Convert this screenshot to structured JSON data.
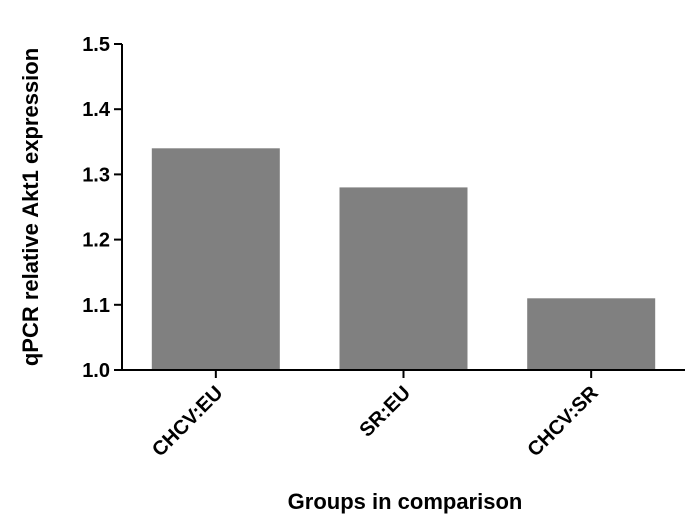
{
  "chart_data": {
    "type": "bar",
    "title": "",
    "xlabel": "Groups in comparison",
    "ylabel": "qPCR relative Akt1 expression",
    "categories": [
      "CHCV:EU",
      "SR:EU",
      "CHCV:SR"
    ],
    "values": [
      1.34,
      1.28,
      1.11
    ],
    "ylim": [
      1.0,
      1.5
    ],
    "yticks": [
      "1.0",
      "1.1",
      "1.2",
      "1.3",
      "1.4",
      "1.5"
    ],
    "grid": false,
    "legend": "none",
    "colors": {
      "bar": "#808080",
      "axis": "#000000"
    }
  }
}
